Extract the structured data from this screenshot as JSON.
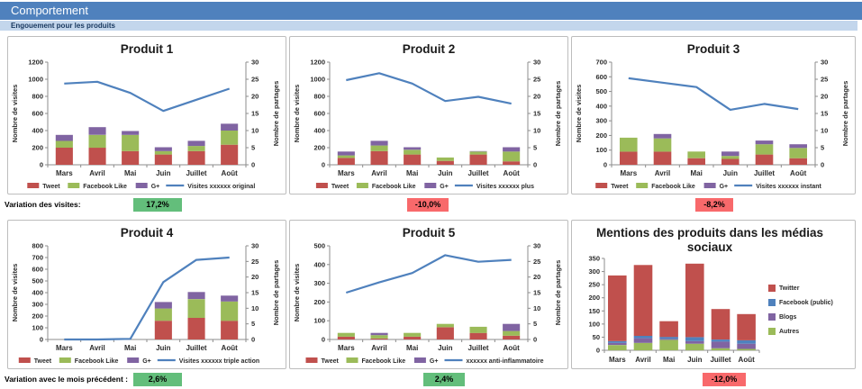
{
  "header": {
    "title": "Comportement",
    "subtitle": "Engouement pour les produits"
  },
  "colors": {
    "header_bar": "#4F81BD",
    "subheader_bar": "#C3D6EC",
    "subheader_text": "#17375E",
    "tweet": "#C0504D",
    "facebook_like": "#9BBB59",
    "gplus": "#8064A2",
    "line": "#4F81BD",
    "twitter": "#C0504D",
    "facebook_public": "#4F81BD",
    "blogs": "#8064A2",
    "autres": "#9BBB59",
    "badge_positive": "#63BE7B",
    "badge_negative": "#F8696B"
  },
  "months": [
    "Mars",
    "Avril",
    "Mai",
    "Juin",
    "Juillet",
    "Août"
  ],
  "chart_data": [
    {
      "type": "combo",
      "title": "Produit 1",
      "categories": [
        "Mars",
        "Avril",
        "Mai",
        "Juin",
        "Juillet",
        "Août"
      ],
      "bar_series": [
        {
          "name": "Tweet",
          "color_key": "tweet",
          "values": [
            200,
            200,
            160,
            120,
            160,
            235
          ]
        },
        {
          "name": "Facebook Like",
          "color_key": "facebook_like",
          "values": [
            80,
            150,
            190,
            40,
            60,
            165
          ]
        },
        {
          "name": "G+",
          "color_key": "gplus",
          "values": [
            70,
            90,
            45,
            45,
            60,
            80
          ]
        }
      ],
      "line_series": {
        "name": "Visites xxxxxx original",
        "color_key": "line",
        "values": [
          950,
          970,
          840,
          630,
          760,
          890
        ]
      },
      "y_left": {
        "label": "Nombre de visites",
        "min": 0,
        "max": 1200,
        "step": 200
      },
      "y_right": {
        "label": "Nombre de partages",
        "min": 0,
        "max": 30,
        "step": 5
      }
    },
    {
      "type": "combo",
      "title": "Produit 2",
      "categories": [
        "Mars",
        "Avril",
        "Mai",
        "Juin",
        "Juillet",
        "Août"
      ],
      "bar_series": [
        {
          "name": "Tweet",
          "color_key": "tweet",
          "values": [
            80,
            160,
            120,
            45,
            120,
            40
          ]
        },
        {
          "name": "Facebook Like",
          "color_key": "facebook_like",
          "values": [
            30,
            65,
            55,
            40,
            35,
            115
          ]
        },
        {
          "name": "G+",
          "color_key": "gplus",
          "values": [
            45,
            55,
            30,
            0,
            5,
            50
          ]
        }
      ],
      "line_series": {
        "name": "Visites xxxxxx plus",
        "color_key": "line",
        "values": [
          990,
          1070,
          950,
          745,
          795,
          715
        ]
      },
      "y_left": {
        "label": "Nombre de visites",
        "min": 0,
        "max": 1200,
        "step": 200
      },
      "y_right": {
        "label": "Nombre de partages",
        "min": 0,
        "max": 30,
        "step": 5
      }
    },
    {
      "type": "combo",
      "title": "Produit 3",
      "categories": [
        "Mars",
        "Avril",
        "Mai",
        "Juin",
        "Juillet",
        "Août"
      ],
      "bar_series": [
        {
          "name": "Tweet",
          "color_key": "tweet",
          "values": [
            90,
            90,
            45,
            40,
            70,
            45
          ]
        },
        {
          "name": "Facebook Like",
          "color_key": "facebook_like",
          "values": [
            95,
            90,
            45,
            20,
            70,
            70
          ]
        },
        {
          "name": "G+",
          "color_key": "gplus",
          "values": [
            0,
            30,
            0,
            30,
            25,
            25
          ]
        }
      ],
      "line_series": {
        "name": "Visites xxxxxx instant",
        "color_key": "line",
        "values": [
          590,
          560,
          530,
          375,
          415,
          380
        ]
      },
      "y_left": {
        "label": "Nombre de visites",
        "min": 0,
        "max": 700,
        "step": 100
      },
      "y_right": {
        "label": "Nombre de partages",
        "min": 0,
        "max": 30,
        "step": 5
      }
    },
    {
      "type": "combo",
      "title": "Produit 4",
      "categories": [
        "Mars",
        "Avril",
        "Mai",
        "Juin",
        "Juillet",
        "Août"
      ],
      "bar_series": [
        {
          "name": "Tweet",
          "color_key": "tweet",
          "values": [
            0,
            0,
            0,
            160,
            185,
            160
          ]
        },
        {
          "name": "Facebook Like",
          "color_key": "facebook_like",
          "values": [
            0,
            0,
            0,
            105,
            160,
            165
          ]
        },
        {
          "name": "G+",
          "color_key": "gplus",
          "values": [
            0,
            0,
            0,
            55,
            60,
            50
          ]
        }
      ],
      "line_series": {
        "name": "Visites xxxxxx triple action",
        "color_key": "line",
        "values": [
          0,
          0,
          5,
          490,
          680,
          700
        ]
      },
      "y_left": {
        "label": "Nombre de visites",
        "min": 0,
        "max": 800,
        "step": 100
      },
      "y_right": {
        "label": "Nombre de partages",
        "min": 0,
        "max": 30,
        "step": 5
      }
    },
    {
      "type": "combo",
      "title": "Produit 5",
      "categories": [
        "Mars",
        "Avril",
        "Mai",
        "Juin",
        "Juillet",
        "Août"
      ],
      "bar_series": [
        {
          "name": "Tweet",
          "color_key": "tweet",
          "values": [
            15,
            5,
            15,
            65,
            35,
            20
          ]
        },
        {
          "name": "Facebook Like",
          "color_key": "facebook_like",
          "values": [
            20,
            18,
            20,
            18,
            33,
            25
          ]
        },
        {
          "name": "G+",
          "color_key": "gplus",
          "values": [
            0,
            12,
            0,
            0,
            0,
            38
          ]
        }
      ],
      "line_series": {
        "name": "xxxxxx anti-inflammatoire",
        "color_key": "line",
        "values": [
          250,
          305,
          355,
          450,
          415,
          425
        ]
      },
      "y_left": {
        "label": "Nombre de visites",
        "min": 0,
        "max": 500,
        "step": 100
      },
      "y_right": {
        "label": "Nombre de partages",
        "min": 0,
        "max": 30,
        "step": 5
      }
    },
    {
      "type": "stacked",
      "title": "Mentions des produits dans les médias sociaux",
      "title_lines": [
        "Mentions des produits dans les médias",
        "sociaux"
      ],
      "categories": [
        "Mars",
        "Avril",
        "Mai",
        "Juin",
        "Juillet",
        "Août"
      ],
      "bar_series": [
        {
          "name": "Twitter",
          "color_key": "twitter",
          "values": [
            250,
            270,
            60,
            280,
            116,
            100
          ]
        },
        {
          "name": "Facebook (public)",
          "color_key": "facebook_public",
          "values": [
            7,
            9,
            8,
            15,
            8,
            13
          ]
        },
        {
          "name": "Blogs",
          "color_key": "blogs",
          "values": [
            8,
            18,
            3,
            10,
            25,
            20
          ]
        },
        {
          "name": "Autres",
          "color_key": "autres",
          "values": [
            20,
            28,
            40,
            25,
            8,
            5
          ]
        }
      ],
      "y_left": {
        "label": "",
        "min": 0,
        "max": 350,
        "step": 50
      }
    }
  ],
  "variation_rows": [
    {
      "label": "Variation des visites:",
      "badges": [
        {
          "value": "17,2%",
          "tone": "positive"
        },
        {
          "value": "-10,0%",
          "tone": "negative"
        },
        {
          "value": "-8,2%",
          "tone": "negative"
        }
      ]
    },
    {
      "label": "Variation avec le mois précédent :",
      "badges": [
        {
          "value": "2,6%",
          "tone": "positive"
        },
        {
          "value": "2,4%",
          "tone": "positive"
        },
        {
          "value": "-12,0%",
          "tone": "negative"
        }
      ]
    }
  ]
}
